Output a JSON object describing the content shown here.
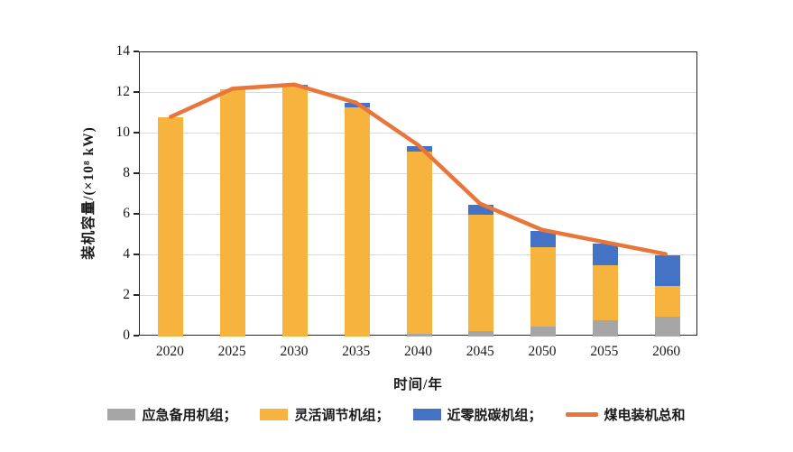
{
  "chart_data": {
    "type": "bar",
    "subtype": "stacked-bars-with-total-line",
    "title": "",
    "xlabel": "时间/年",
    "ylabel": "装机容量/(×10⁸ kW)",
    "categories": [
      "2020",
      "2025",
      "2030",
      "2035",
      "2040",
      "2045",
      "2050",
      "2055",
      "2060"
    ],
    "series": [
      {
        "name": "应急备用机组",
        "color": "#a6a6a6",
        "values": [
          0,
          0,
          0,
          0,
          0.15,
          0.25,
          0.5,
          0.8,
          1.0
        ]
      },
      {
        "name": "灵活调节机组",
        "color": "#f6b43e",
        "values": [
          10.8,
          12.2,
          12.3,
          11.3,
          8.95,
          5.75,
          3.9,
          2.7,
          1.5
        ]
      },
      {
        "name": "近零脱碳机组",
        "color": "#4472c4",
        "values": [
          0,
          0,
          0.1,
          0.2,
          0.3,
          0.5,
          0.8,
          1.1,
          1.5
        ]
      }
    ],
    "line_series": {
      "name": "煤电装机总和",
      "color": "#e8763b",
      "values": [
        10.8,
        12.2,
        12.4,
        11.5,
        9.4,
        6.5,
        5.2,
        4.6,
        4.0
      ]
    },
    "ylim": [
      0,
      14
    ],
    "yticks": [
      0,
      2,
      4,
      6,
      8,
      10,
      12,
      14
    ],
    "grid": true,
    "legend_position": "bottom",
    "legend": [
      {
        "label": "应急备用机组；",
        "swatch": "rect",
        "color": "#a6a6a6"
      },
      {
        "label": "灵活调节机组；",
        "swatch": "rect",
        "color": "#f6b43e"
      },
      {
        "label": "近零脱碳机组；",
        "swatch": "rect",
        "color": "#4472c4"
      },
      {
        "label": "煤电装机总和",
        "swatch": "line",
        "color": "#e8763b"
      }
    ],
    "colors": {
      "gridline": "#d9d9d9",
      "axis_border": "#262626",
      "background": "#ffffff"
    }
  }
}
